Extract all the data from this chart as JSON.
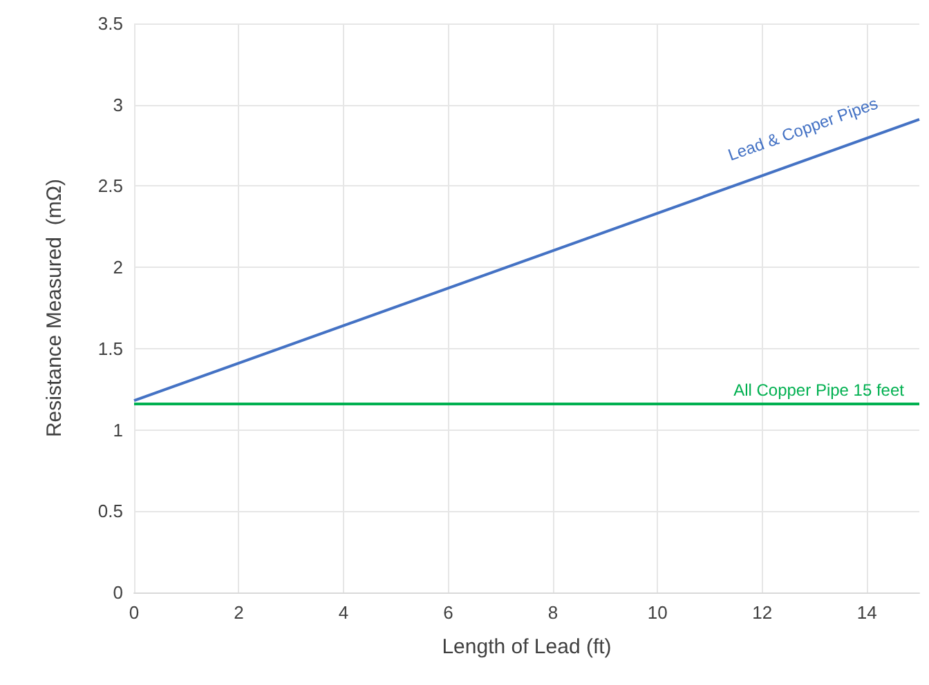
{
  "chart_data": {
    "type": "line",
    "xlabel": "Length of Lead (ft)",
    "ylabel": "Resistance Measured  (mΩ)",
    "x": [
      0,
      15
    ],
    "series": [
      {
        "name": "Lead & Copper Pipes",
        "color": "#4472c4",
        "values": [
          1.18,
          2.91
        ]
      },
      {
        "name": "All Copper Pipe 15 feet",
        "color": "#00b050",
        "values": [
          1.16,
          1.16
        ]
      }
    ],
    "xlim": [
      0,
      15
    ],
    "xticks": [
      0,
      2,
      4,
      6,
      8,
      10,
      12,
      14
    ],
    "ylim": [
      0,
      3.5
    ],
    "yticks": [
      0,
      0.5,
      1,
      1.5,
      2,
      2.5,
      3,
      3.5
    ],
    "grid": true,
    "legend": false,
    "marker": "none",
    "line_style": "solid"
  }
}
